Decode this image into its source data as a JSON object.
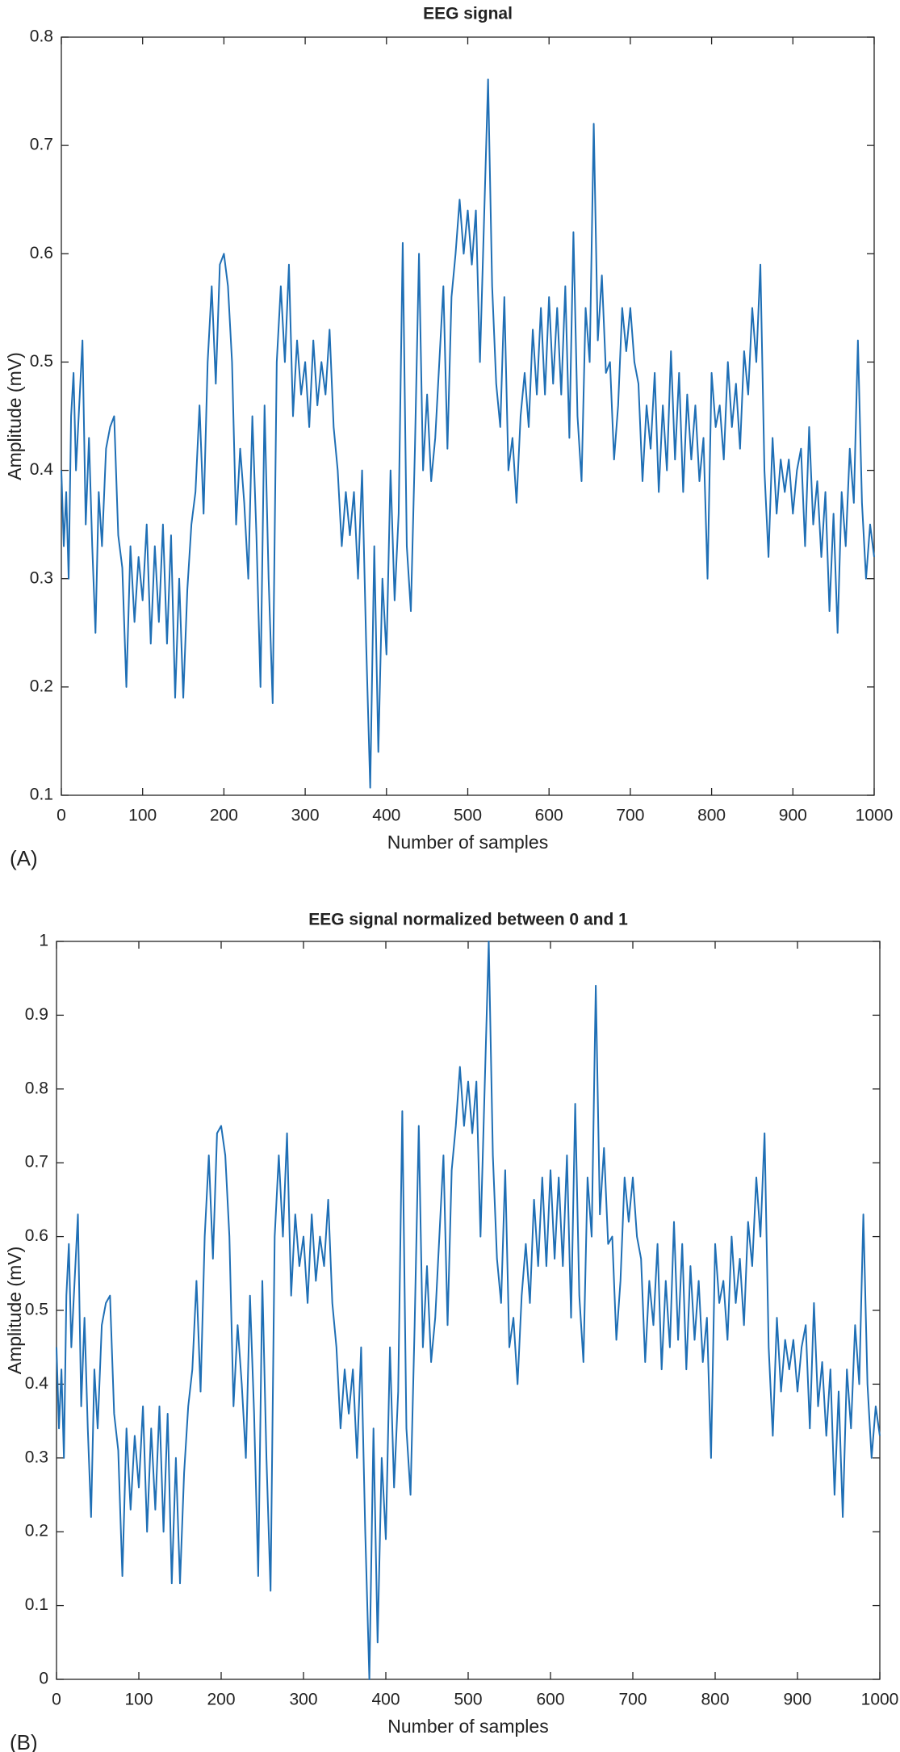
{
  "chart_data": [
    {
      "type": "line",
      "title": "EEG signal",
      "xlabel": "Number of samples",
      "ylabel": "Amplitude (mV)",
      "panel_label": "(A)",
      "color": "#1f6fb5",
      "xlim": [
        0,
        1000
      ],
      "xticks": [
        0,
        100,
        200,
        300,
        400,
        500,
        600,
        700,
        800,
        900,
        1000
      ],
      "ylim": [
        0.1,
        0.8
      ],
      "yticks": [
        0.1,
        0.2,
        0.3,
        0.4,
        0.5,
        0.6,
        0.7,
        0.8
      ],
      "grid": false,
      "x": [
        0,
        3,
        6,
        9,
        12,
        15,
        18,
        22,
        26,
        30,
        34,
        38,
        42,
        46,
        50,
        55,
        60,
        65,
        70,
        75,
        80,
        85,
        90,
        95,
        100,
        105,
        110,
        115,
        120,
        125,
        130,
        135,
        140,
        145,
        150,
        155,
        160,
        165,
        170,
        175,
        180,
        185,
        190,
        195,
        200,
        205,
        210,
        215,
        220,
        225,
        230,
        235,
        240,
        245,
        250,
        255,
        260,
        265,
        270,
        275,
        280,
        285,
        290,
        295,
        300,
        305,
        310,
        315,
        320,
        325,
        330,
        335,
        340,
        345,
        350,
        355,
        360,
        365,
        370,
        375,
        380,
        385,
        390,
        395,
        400,
        405,
        410,
        415,
        420,
        425,
        430,
        435,
        440,
        445,
        450,
        455,
        460,
        465,
        470,
        475,
        480,
        485,
        490,
        495,
        500,
        505,
        510,
        515,
        520,
        525,
        530,
        535,
        540,
        545,
        550,
        555,
        560,
        565,
        570,
        575,
        580,
        585,
        590,
        595,
        600,
        605,
        610,
        615,
        620,
        625,
        630,
        635,
        640,
        645,
        650,
        655,
        660,
        665,
        670,
        675,
        680,
        685,
        690,
        695,
        700,
        705,
        710,
        715,
        720,
        725,
        730,
        735,
        740,
        745,
        750,
        755,
        760,
        765,
        770,
        775,
        780,
        785,
        790,
        795,
        800,
        805,
        810,
        815,
        820,
        825,
        830,
        835,
        840,
        845,
        850,
        855,
        860,
        865,
        870,
        875,
        880,
        885,
        890,
        895,
        900,
        905,
        910,
        915,
        920,
        925,
        930,
        935,
        940,
        945,
        950,
        955,
        960,
        965,
        970,
        975,
        980,
        985,
        990,
        995,
        1000
      ],
      "values": [
        0.4,
        0.33,
        0.38,
        0.3,
        0.45,
        0.49,
        0.4,
        0.46,
        0.52,
        0.35,
        0.43,
        0.33,
        0.25,
        0.38,
        0.33,
        0.42,
        0.44,
        0.45,
        0.34,
        0.31,
        0.2,
        0.33,
        0.26,
        0.32,
        0.28,
        0.35,
        0.24,
        0.33,
        0.26,
        0.35,
        0.24,
        0.34,
        0.19,
        0.3,
        0.19,
        0.29,
        0.35,
        0.38,
        0.46,
        0.36,
        0.5,
        0.57,
        0.48,
        0.59,
        0.6,
        0.57,
        0.5,
        0.35,
        0.42,
        0.37,
        0.3,
        0.45,
        0.34,
        0.2,
        0.46,
        0.3,
        0.185,
        0.5,
        0.57,
        0.5,
        0.59,
        0.45,
        0.52,
        0.47,
        0.5,
        0.44,
        0.52,
        0.46,
        0.5,
        0.47,
        0.53,
        0.44,
        0.4,
        0.33,
        0.38,
        0.34,
        0.38,
        0.3,
        0.4,
        0.24,
        0.107,
        0.33,
        0.14,
        0.3,
        0.23,
        0.4,
        0.28,
        0.36,
        0.61,
        0.33,
        0.27,
        0.42,
        0.6,
        0.4,
        0.47,
        0.39,
        0.43,
        0.5,
        0.57,
        0.42,
        0.56,
        0.6,
        0.65,
        0.6,
        0.64,
        0.59,
        0.64,
        0.5,
        0.63,
        0.761,
        0.57,
        0.48,
        0.44,
        0.56,
        0.4,
        0.43,
        0.37,
        0.45,
        0.49,
        0.44,
        0.53,
        0.47,
        0.55,
        0.47,
        0.56,
        0.48,
        0.55,
        0.47,
        0.57,
        0.43,
        0.62,
        0.45,
        0.39,
        0.55,
        0.5,
        0.72,
        0.52,
        0.58,
        0.49,
        0.5,
        0.41,
        0.46,
        0.55,
        0.51,
        0.55,
        0.5,
        0.48,
        0.39,
        0.46,
        0.42,
        0.49,
        0.38,
        0.46,
        0.4,
        0.51,
        0.41,
        0.49,
        0.38,
        0.47,
        0.41,
        0.46,
        0.39,
        0.43,
        0.3,
        0.49,
        0.44,
        0.46,
        0.41,
        0.5,
        0.44,
        0.48,
        0.42,
        0.51,
        0.47,
        0.55,
        0.5,
        0.59,
        0.4,
        0.32,
        0.43,
        0.36,
        0.41,
        0.38,
        0.41,
        0.36,
        0.4,
        0.42,
        0.33,
        0.44,
        0.35,
        0.39,
        0.32,
        0.38,
        0.27,
        0.36,
        0.25,
        0.38,
        0.33,
        0.42,
        0.37,
        0.52,
        0.37,
        0.3,
        0.35,
        0.32
      ]
    },
    {
      "type": "line",
      "title": "EEG signal normalized between 0 and 1",
      "xlabel": "Number of samples",
      "ylabel": "Amplitude (mV)",
      "panel_label": "(B)",
      "color": "#1f6fb5",
      "xlim": [
        0,
        1000
      ],
      "xticks": [
        0,
        100,
        200,
        300,
        400,
        500,
        600,
        700,
        800,
        900,
        1000
      ],
      "ylim": [
        0,
        1
      ],
      "yticks": [
        0,
        0.1,
        0.2,
        0.3,
        0.4,
        0.5,
        0.6,
        0.7,
        0.8,
        0.9,
        1
      ],
      "grid": false,
      "x": [
        0,
        3,
        6,
        9,
        12,
        15,
        18,
        22,
        26,
        30,
        34,
        38,
        42,
        46,
        50,
        55,
        60,
        65,
        70,
        75,
        80,
        85,
        90,
        95,
        100,
        105,
        110,
        115,
        120,
        125,
        130,
        135,
        140,
        145,
        150,
        155,
        160,
        165,
        170,
        175,
        180,
        185,
        190,
        195,
        200,
        205,
        210,
        215,
        220,
        225,
        230,
        235,
        240,
        245,
        250,
        255,
        260,
        265,
        270,
        275,
        280,
        285,
        290,
        295,
        300,
        305,
        310,
        315,
        320,
        325,
        330,
        335,
        340,
        345,
        350,
        355,
        360,
        365,
        370,
        375,
        380,
        385,
        390,
        395,
        400,
        405,
        410,
        415,
        420,
        425,
        430,
        435,
        440,
        445,
        450,
        455,
        460,
        465,
        470,
        475,
        480,
        485,
        490,
        495,
        500,
        505,
        510,
        515,
        520,
        525,
        530,
        535,
        540,
        545,
        550,
        555,
        560,
        565,
        570,
        575,
        580,
        585,
        590,
        595,
        600,
        605,
        610,
        615,
        620,
        625,
        630,
        635,
        640,
        645,
        650,
        655,
        660,
        665,
        670,
        675,
        680,
        685,
        690,
        695,
        700,
        705,
        710,
        715,
        720,
        725,
        730,
        735,
        740,
        745,
        750,
        755,
        760,
        765,
        770,
        775,
        780,
        785,
        790,
        795,
        800,
        805,
        810,
        815,
        820,
        825,
        830,
        835,
        840,
        845,
        850,
        855,
        860,
        865,
        870,
        875,
        880,
        885,
        890,
        895,
        900,
        905,
        910,
        915,
        920,
        925,
        930,
        935,
        940,
        945,
        950,
        955,
        960,
        965,
        970,
        975,
        980,
        985,
        990,
        995,
        1000
      ],
      "values": [
        0.45,
        0.34,
        0.42,
        0.3,
        0.52,
        0.59,
        0.45,
        0.54,
        0.63,
        0.37,
        0.49,
        0.34,
        0.22,
        0.42,
        0.34,
        0.48,
        0.51,
        0.52,
        0.36,
        0.31,
        0.14,
        0.34,
        0.23,
        0.33,
        0.26,
        0.37,
        0.2,
        0.34,
        0.23,
        0.37,
        0.2,
        0.36,
        0.13,
        0.3,
        0.13,
        0.28,
        0.37,
        0.42,
        0.54,
        0.39,
        0.6,
        0.71,
        0.57,
        0.74,
        0.75,
        0.71,
        0.6,
        0.37,
        0.48,
        0.4,
        0.3,
        0.52,
        0.36,
        0.14,
        0.54,
        0.3,
        0.12,
        0.6,
        0.71,
        0.6,
        0.74,
        0.52,
        0.63,
        0.56,
        0.6,
        0.51,
        0.63,
        0.54,
        0.6,
        0.56,
        0.65,
        0.51,
        0.45,
        0.34,
        0.42,
        0.36,
        0.42,
        0.3,
        0.45,
        0.2,
        0,
        0.34,
        0.05,
        0.3,
        0.19,
        0.45,
        0.26,
        0.39,
        0.77,
        0.34,
        0.25,
        0.48,
        0.75,
        0.45,
        0.56,
        0.43,
        0.49,
        0.6,
        0.71,
        0.48,
        0.69,
        0.75,
        0.83,
        0.75,
        0.81,
        0.74,
        0.81,
        0.6,
        0.8,
        1,
        0.71,
        0.57,
        0.51,
        0.69,
        0.45,
        0.49,
        0.4,
        0.52,
        0.59,
        0.51,
        0.65,
        0.56,
        0.68,
        0.56,
        0.69,
        0.57,
        0.68,
        0.56,
        0.71,
        0.49,
        0.78,
        0.52,
        0.43,
        0.68,
        0.6,
        0.94,
        0.63,
        0.72,
        0.59,
        0.6,
        0.46,
        0.54,
        0.68,
        0.62,
        0.68,
        0.6,
        0.57,
        0.43,
        0.54,
        0.48,
        0.59,
        0.42,
        0.54,
        0.45,
        0.62,
        0.46,
        0.59,
        0.42,
        0.56,
        0.46,
        0.54,
        0.43,
        0.49,
        0.3,
        0.59,
        0.51,
        0.54,
        0.46,
        0.6,
        0.51,
        0.57,
        0.48,
        0.62,
        0.56,
        0.68,
        0.6,
        0.74,
        0.45,
        0.33,
        0.49,
        0.39,
        0.46,
        0.42,
        0.46,
        0.39,
        0.45,
        0.48,
        0.34,
        0.51,
        0.37,
        0.43,
        0.33,
        0.42,
        0.25,
        0.39,
        0.22,
        0.42,
        0.34,
        0.48,
        0.4,
        0.63,
        0.4,
        0.3,
        0.37,
        0.33
      ]
    }
  ]
}
